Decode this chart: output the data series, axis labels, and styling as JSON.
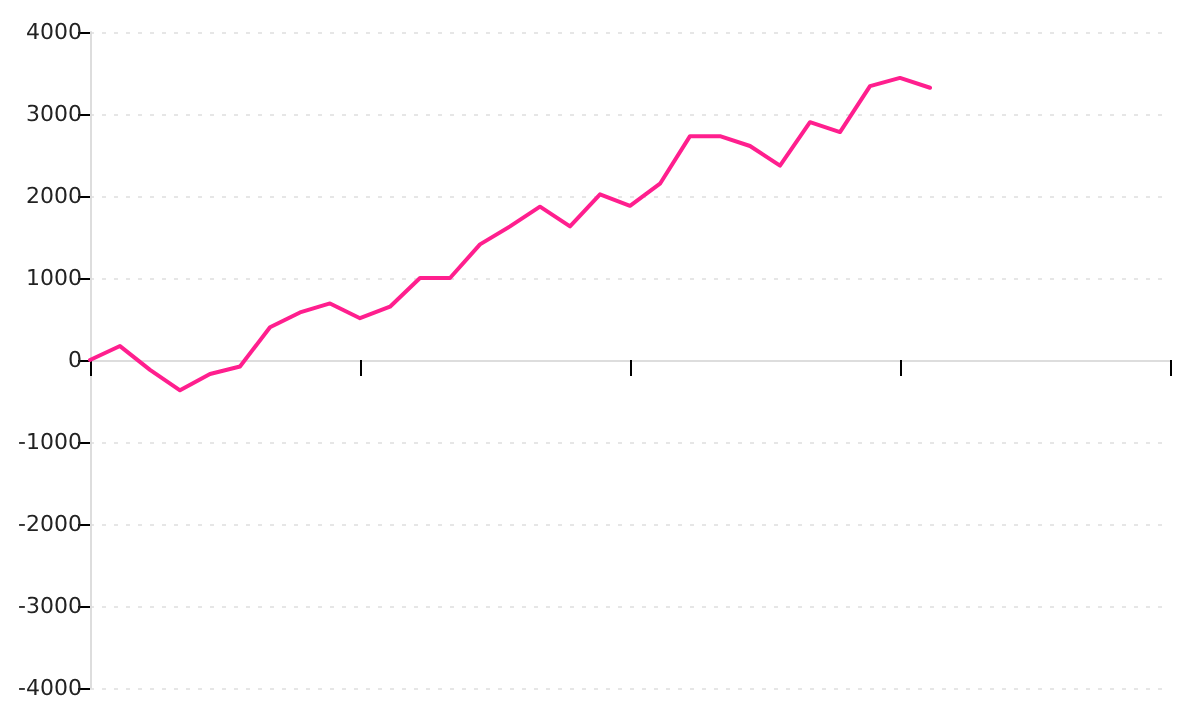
{
  "chart_data": {
    "type": "line",
    "categories": [
      null,
      null,
      null,
      null,
      null,
      null,
      null,
      null,
      null,
      null,
      null,
      null,
      null,
      null,
      null,
      null,
      null,
      null,
      null,
      null,
      null,
      null,
      null,
      null,
      null,
      null,
      null,
      null,
      null,
      null,
      null,
      null,
      null,
      null,
      null,
      null,
      null
    ],
    "series": [
      {
        "color": "#ff1f8e",
        "values": [
          0,
          170,
          -120,
          -370,
          -170,
          -80,
          400,
          580,
          690,
          510,
          650,
          1000,
          1000,
          1410,
          1630,
          1870,
          1630,
          2020,
          1880,
          2150,
          2730,
          2730,
          2610,
          2370,
          2900,
          2780,
          3340,
          3440,
          3320,
          null,
          null,
          null,
          null,
          null,
          null,
          null,
          null
        ]
      }
    ],
    "ylim": [
      -4000,
      4000
    ],
    "yticks": [
      -4000,
      -3000,
      -2000,
      -1000,
      0,
      1000,
      2000,
      3000,
      4000
    ],
    "grid": "y",
    "tick_labels": "y",
    "marker": "none",
    "line_style": "solid"
  }
}
